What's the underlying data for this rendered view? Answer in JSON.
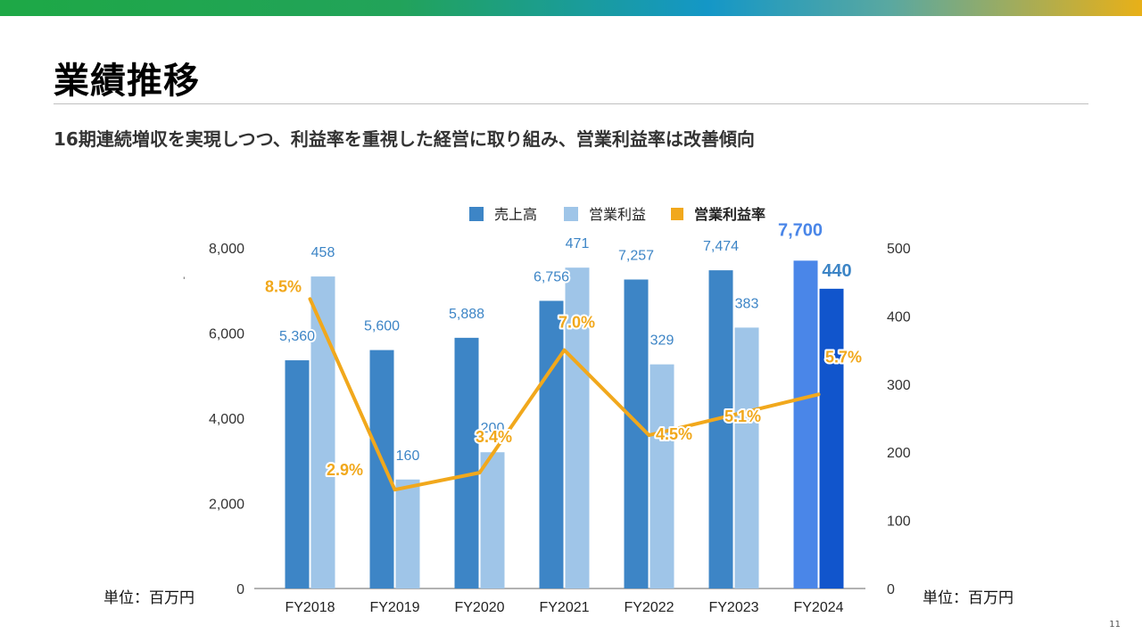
{
  "slide": {
    "title": "業績推移",
    "subtitle": "16期連続増収を実現しつつ、利益率を重視した経営に取り組み、営業利益率は改善傾向",
    "unit_left": "単位：百万円",
    "unit_right": "単位：百万円",
    "page_number": "11",
    "stray_mark": "'"
  },
  "chart_data": {
    "type": "bar",
    "title": "",
    "categories": [
      "FY2018",
      "FY2019",
      "FY2020",
      "FY2021",
      "FY2022",
      "FY2023",
      "FY2024"
    ],
    "series": [
      {
        "name": "売上高",
        "kind": "bar",
        "axis": "left",
        "color": "#3d85c6",
        "highlight_color": "#4a86e8",
        "values": [
          5360,
          5600,
          5888,
          6756,
          7257,
          7474,
          7700
        ],
        "labels": [
          "5,360",
          "5,600",
          "5,888",
          "6,756",
          "7,257",
          "7,474",
          "7,700"
        ]
      },
      {
        "name": "営業利益",
        "kind": "bar",
        "axis": "right",
        "color": "#9fc5e8",
        "highlight_color": "#1155cc",
        "values": [
          458,
          160,
          200,
          471,
          329,
          383,
          440
        ],
        "labels": [
          "458",
          "160",
          "200",
          "471",
          "329",
          "383",
          "440"
        ]
      },
      {
        "name": "営業利益率",
        "kind": "line",
        "axis": "right",
        "color": "#f1a81c",
        "values": [
          8.5,
          2.9,
          3.4,
          7.0,
          4.5,
          5.1,
          5.7
        ],
        "labels": [
          "8.5%",
          "2.9%",
          "3.4%",
          "7.0%",
          "4.5%",
          "5.1%",
          "5.7%"
        ]
      }
    ],
    "y_left": {
      "min": 0,
      "max": 8000,
      "ticks": [
        0,
        2000,
        4000,
        6000,
        8000
      ],
      "tick_labels": [
        "0",
        "2,000",
        "4,000",
        "6,000",
        "8,000"
      ]
    },
    "y_right": {
      "min": 0,
      "max": 500,
      "ticks": [
        0,
        100,
        200,
        300,
        400,
        500
      ],
      "tick_labels": [
        "0",
        "100",
        "200",
        "300",
        "400",
        "500"
      ]
    },
    "line_scale": {
      "percent_at_right_axis_max": 10
    },
    "legend": "top-center",
    "grid": false
  }
}
